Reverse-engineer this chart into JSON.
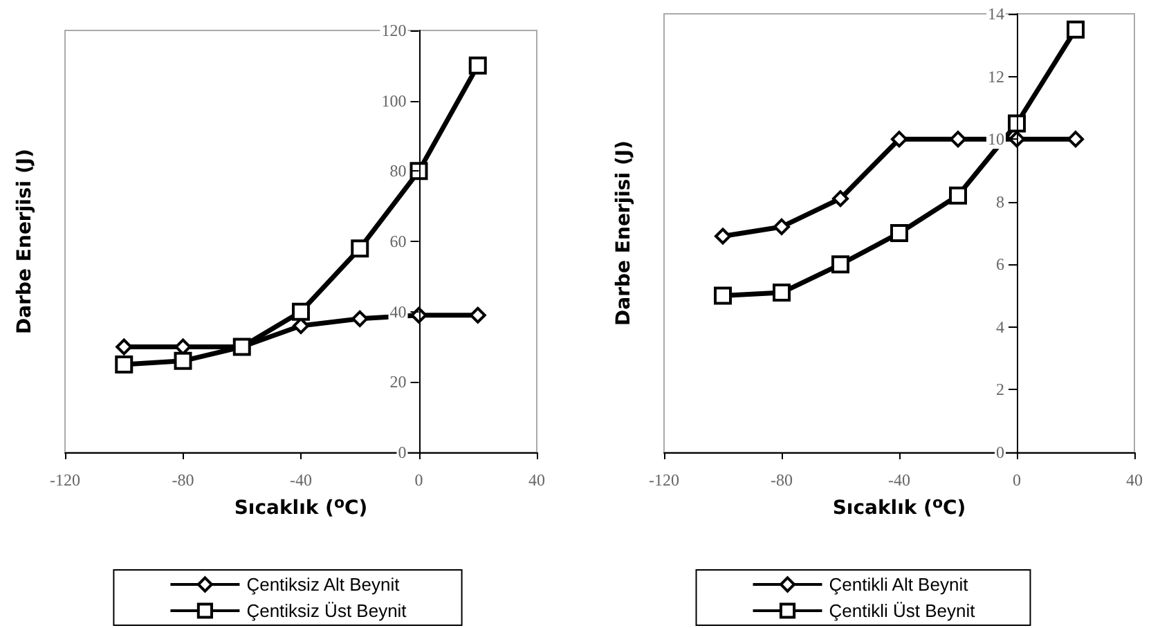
{
  "chart_data": [
    {
      "type": "line",
      "xlabel": "Sıcaklık ($^{o}$C)",
      "ylabel": "Darbe Enerjisi (J)",
      "x": [
        -100,
        -80,
        -60,
        -40,
        -20,
        0,
        20
      ],
      "series": [
        {
          "name": "Çentiksiz Alt Beynit",
          "color": "#000000",
          "marker": "diamond",
          "values": [
            30,
            30,
            30,
            36,
            38,
            39,
            39
          ]
        },
        {
          "name": "Çentiksiz Üst Beynit",
          "color": "#000000",
          "marker": "square",
          "values": [
            25,
            26,
            30,
            40,
            58,
            80,
            110
          ]
        }
      ],
      "xlim": [
        -120,
        40
      ],
      "xticks": [
        -120,
        -80,
        -40,
        0,
        40
      ],
      "ylim": [
        0,
        120
      ],
      "yticks": [
        0,
        20,
        40,
        60,
        80,
        100,
        120
      ],
      "grid": false,
      "legend": "bottom",
      "line_style": "solid"
    },
    {
      "type": "line",
      "xlabel": "Sıcaklık ($^{o}$C)",
      "ylabel": "Darbe Enerjisi (J)",
      "x": [
        -100,
        -80,
        -60,
        -40,
        -20,
        0,
        20
      ],
      "series": [
        {
          "name": "Çentikli Alt Beynit",
          "color": "#000000",
          "marker": "diamond",
          "values": [
            6.9,
            7.2,
            8.1,
            10,
            10,
            10,
            10
          ]
        },
        {
          "name": "Çentikli Üst Beynit",
          "color": "#000000",
          "marker": "square",
          "values": [
            5,
            5.1,
            6,
            7,
            8.2,
            10.5,
            13.5
          ]
        }
      ],
      "xlim": [
        -120,
        40
      ],
      "xticks": [
        -120,
        -80,
        -40,
        0,
        40
      ],
      "ylim": [
        0,
        14
      ],
      "yticks": [
        0,
        2,
        4,
        6,
        8,
        10,
        12,
        14
      ],
      "grid": false,
      "legend": "bottom",
      "line_style": "solid"
    }
  ]
}
